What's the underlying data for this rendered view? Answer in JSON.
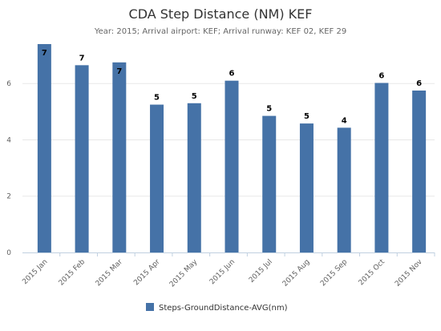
{
  "colors": {
    "bar": "#4572A7",
    "axis": "#C0D0E0",
    "grid": "#E8E8E8",
    "text": "#606060"
  },
  "chart_data": {
    "type": "bar",
    "title": "CDA Step Distance (NM) KEF",
    "subtitle": "Year: 2015; Arrival airport: KEF; Arrival runway: KEF 02, KEF 29",
    "categories": [
      "2015 Jan",
      "2015 Feb",
      "2015 Mar",
      "2015 Apr",
      "2015 May",
      "2015 Jun",
      "2015 Jul",
      "2015 Aug",
      "2015 Sep",
      "2015 Oct",
      "2015 Nov"
    ],
    "series": [
      {
        "name": "Steps-GroundDistance-AVG(nm)",
        "values": [
          7.4,
          6.65,
          6.75,
          5.25,
          5.3,
          6.1,
          4.85,
          4.58,
          4.43,
          6.02,
          5.75
        ],
        "labels": [
          "7",
          "7",
          "7",
          "5",
          "5",
          "6",
          "5",
          "5",
          "4",
          "6",
          "6"
        ]
      }
    ],
    "yticks": [
      "0",
      "2",
      "4",
      "6"
    ],
    "ylim": [
      0,
      7.4
    ],
    "grid": true,
    "legend": "bottom-center"
  }
}
